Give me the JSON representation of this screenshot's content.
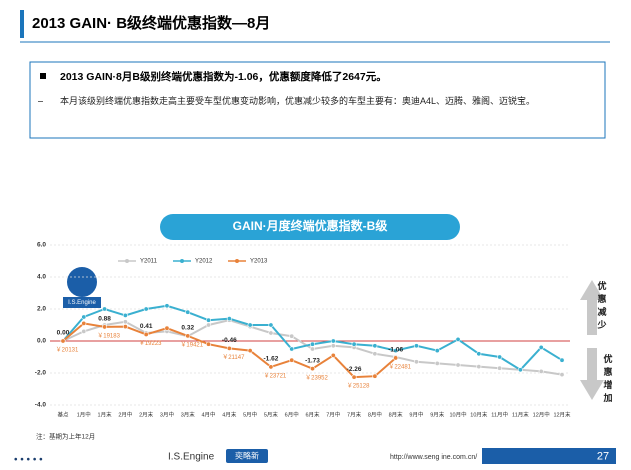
{
  "header": {
    "title": "2013 GAIN· B级终端优惠指数—8月"
  },
  "summary": {
    "headline": "2013 GAIN·8月B级别终端优惠指数为-1.06，优惠额度降低了2647元。",
    "detail": "本月该级别终端优惠指数走高主要受车型优惠变动影响，优惠减少较多的车型主要有：奥迪A4L、迈腾、雅阁、迈锐宝。"
  },
  "chart_data": {
    "type": "line",
    "title": "GAIN·月度终端优惠指数-B级",
    "logo": "I.S.Engine",
    "categories": [
      "基点",
      "1月中",
      "1月末",
      "2月中",
      "2月末",
      "3月中",
      "3月末",
      "4月中",
      "4月末",
      "5月中",
      "5月末",
      "6月中",
      "6月末",
      "7月中",
      "7月末",
      "8月中",
      "8月末",
      "9月中",
      "9月末",
      "10月中",
      "10月末",
      "11月中",
      "11月末",
      "12月中",
      "12月末"
    ],
    "ylim": [
      -4,
      6
    ],
    "yticks": [
      {
        "value": -4,
        "label": "-4.0"
      },
      {
        "value": -2,
        "label": "-2.0"
      },
      {
        "value": 0,
        "label": "0.0"
      },
      {
        "value": 2,
        "label": "2.0"
      },
      {
        "value": 4,
        "label": "4.0"
      },
      {
        "value": 6,
        "label": "6.0"
      }
    ],
    "grid": true,
    "legend": "top",
    "series": [
      {
        "name": "Y2011",
        "color": "#c8c8c8",
        "values": [
          0,
          0.6,
          1.0,
          1.2,
          0.5,
          0.6,
          0.3,
          1.0,
          1.3,
          0.9,
          0.5,
          0.3,
          -0.5,
          -0.3,
          -0.4,
          -0.8,
          -1.0,
          -1.3,
          -1.4,
          -1.5,
          -1.6,
          -1.7,
          -1.8,
          -1.9,
          -2.1
        ]
      },
      {
        "name": "Y2012",
        "color": "#3ab0d0",
        "values": [
          0,
          1.5,
          2.0,
          1.6,
          2.0,
          2.2,
          1.8,
          1.3,
          1.4,
          1.0,
          1.0,
          -0.5,
          -0.2,
          0,
          -0.2,
          -0.3,
          -0.6,
          -0.3,
          -0.6,
          0.1,
          -0.8,
          -1.0,
          -1.8,
          -0.4,
          -1.2
        ]
      },
      {
        "name": "Y2013",
        "color": "#e8823a",
        "values": [
          0,
          1.1,
          0.88,
          0.9,
          0.41,
          0.8,
          0.32,
          -0.2,
          -0.46,
          -0.6,
          -1.62,
          -1.2,
          -1.73,
          -0.9,
          -2.26,
          -2.2,
          -1.06,
          null,
          null,
          null,
          null,
          null,
          null,
          null,
          null
        ],
        "value_labels": [
          "0.00",
          null,
          "0.88",
          null,
          "0.41",
          null,
          "0.32",
          null,
          "-0.46",
          null,
          "-1.62",
          null,
          "-1.73",
          null,
          "-2.26",
          null,
          "-1.06",
          null,
          null,
          null,
          null,
          null,
          null,
          null,
          null
        ],
        "price_labels": [
          "￥20131",
          null,
          "￥19183",
          null,
          "￥19223",
          null,
          "￥19421",
          null,
          "￥21147",
          null,
          "￥23721",
          null,
          "￥23952",
          null,
          "￥25128",
          null,
          "￥22481",
          null,
          null,
          null,
          null,
          null,
          null,
          null,
          null
        ]
      }
    ],
    "side_labels": {
      "up": "优惠减少",
      "down": "优惠增加"
    },
    "note": "注：基期为上年12月"
  },
  "footer": {
    "brand": "I.S.Engine",
    "brand_cn": "奕略新",
    "url": "http://www.seng ine.com.cn/",
    "page": "27"
  }
}
